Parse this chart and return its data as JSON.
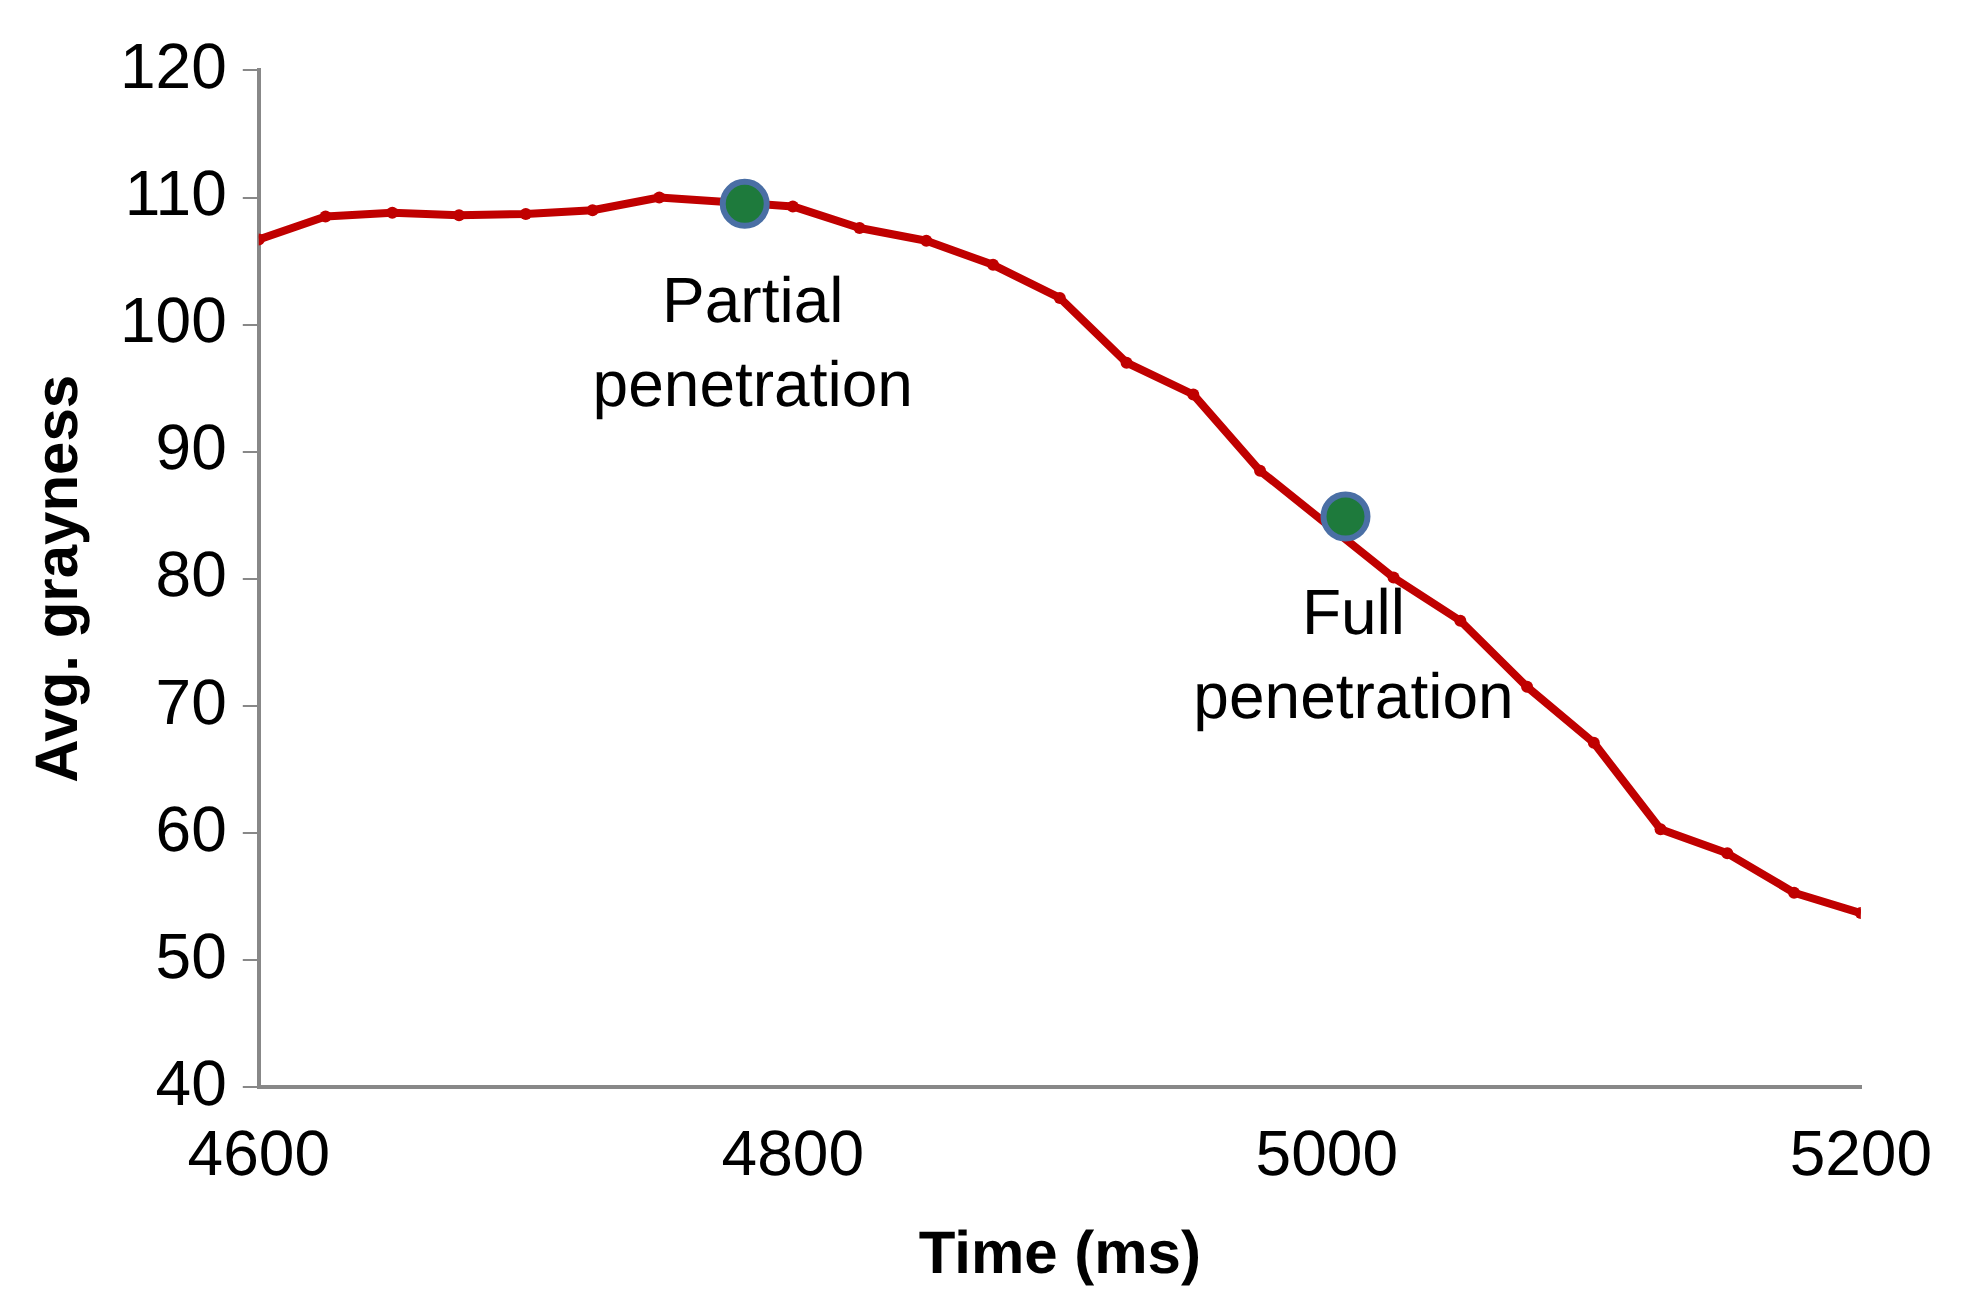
{
  "chart_data": {
    "type": "line",
    "xlabel": "Time (ms)",
    "ylabel": "Avg. grayness",
    "xlim": [
      4600,
      5200
    ],
    "xticks": [
      4600,
      4800,
      5000,
      5200
    ],
    "ylim": [
      40,
      120
    ],
    "yticks": [
      40,
      50,
      60,
      70,
      80,
      90,
      100,
      110,
      120
    ],
    "grid": false,
    "legend": false,
    "marker": "circle",
    "line_style": "solid",
    "series": [
      {
        "color": "#c00000",
        "x": [
          4600,
          4625,
          4650,
          4675,
          4700,
          4725,
          4750,
          4782,
          4800,
          4825,
          4850,
          4875,
          4900,
          4925,
          4950,
          4975,
          5007,
          5025,
          5050,
          5075,
          5100,
          5125,
          5150,
          5175,
          5200
        ],
        "values": [
          106.7,
          108.5,
          108.8,
          108.6,
          108.7,
          109,
          110,
          null,
          109.3,
          107.6,
          106.6,
          104.7,
          102.1,
          97,
          94.5,
          88.5,
          null,
          80.1,
          76.7,
          71.5,
          67.1,
          60.3,
          58.4,
          55.3,
          53.7
        ]
      },
      {
        "type": "scatter",
        "color": "#1e7a3c",
        "x": [
          4782,
          5007
        ],
        "values": [
          109.5,
          84.9
        ]
      }
    ],
    "annotations": [
      {
        "text": "Partial penetration",
        "x": 4782,
        "y": 109.5
      },
      {
        "text": "Full penetration",
        "x": 5007,
        "y": 84.9
      }
    ]
  }
}
